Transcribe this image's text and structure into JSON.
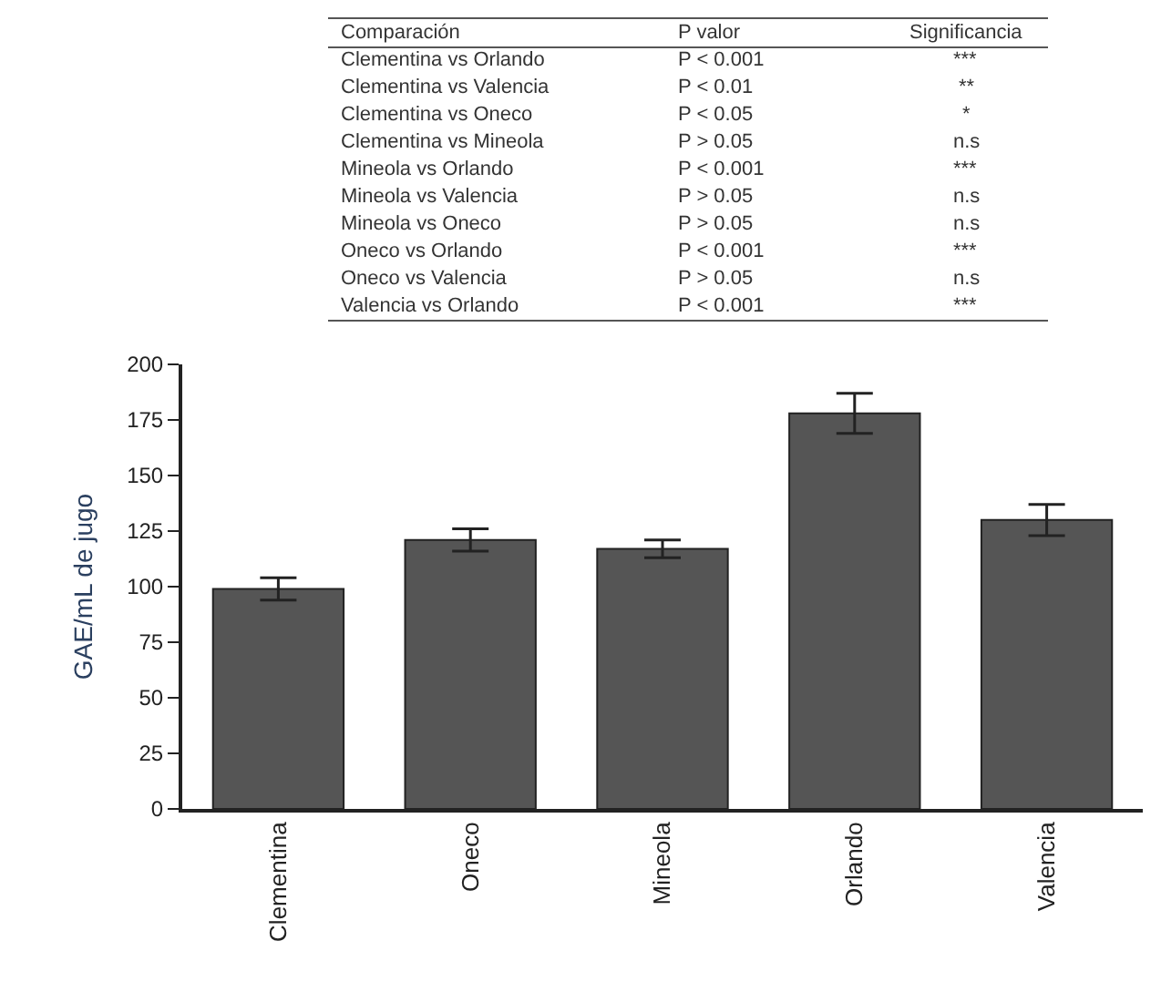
{
  "chart_data": {
    "type": "bar",
    "categories": [
      "Clementina",
      "Oneco",
      "Mineola",
      "Orlando",
      "Valencia"
    ],
    "values": [
      99,
      121,
      117,
      178,
      130
    ],
    "errors": [
      5,
      5,
      4,
      9,
      7
    ],
    "color": "#555555",
    "ylabel": "GAE/mL de jugo",
    "ylim": [
      0,
      200
    ],
    "yticks": [
      0,
      25,
      50,
      75,
      100,
      125,
      150,
      175,
      200
    ],
    "annotations": [
      "Comparación",
      "P valor",
      "Significancia",
      "Clementina vs Orlando",
      "P < 0.001",
      "***",
      "Clementina vs Valencia",
      "P < 0.01",
      "**",
      "Clementina vs Oneco",
      "P < 0.05",
      "*",
      "Clementina vs Mineola",
      "P > 0.05",
      "n.s",
      "Mineola vs Orlando",
      "P < 0.001",
      "***",
      "Mineola vs Valencia",
      "P > 0.05",
      "n.s",
      "Mineola vs Oneco",
      "P > 0.05",
      "n.s",
      "Oneco vs Orlando",
      "P < 0.001",
      "***",
      "Oneco vs Valencia",
      "P > 0.05",
      "n.s",
      "Valencia vs Orlando",
      "P < 0.001",
      "***"
    ]
  }
}
